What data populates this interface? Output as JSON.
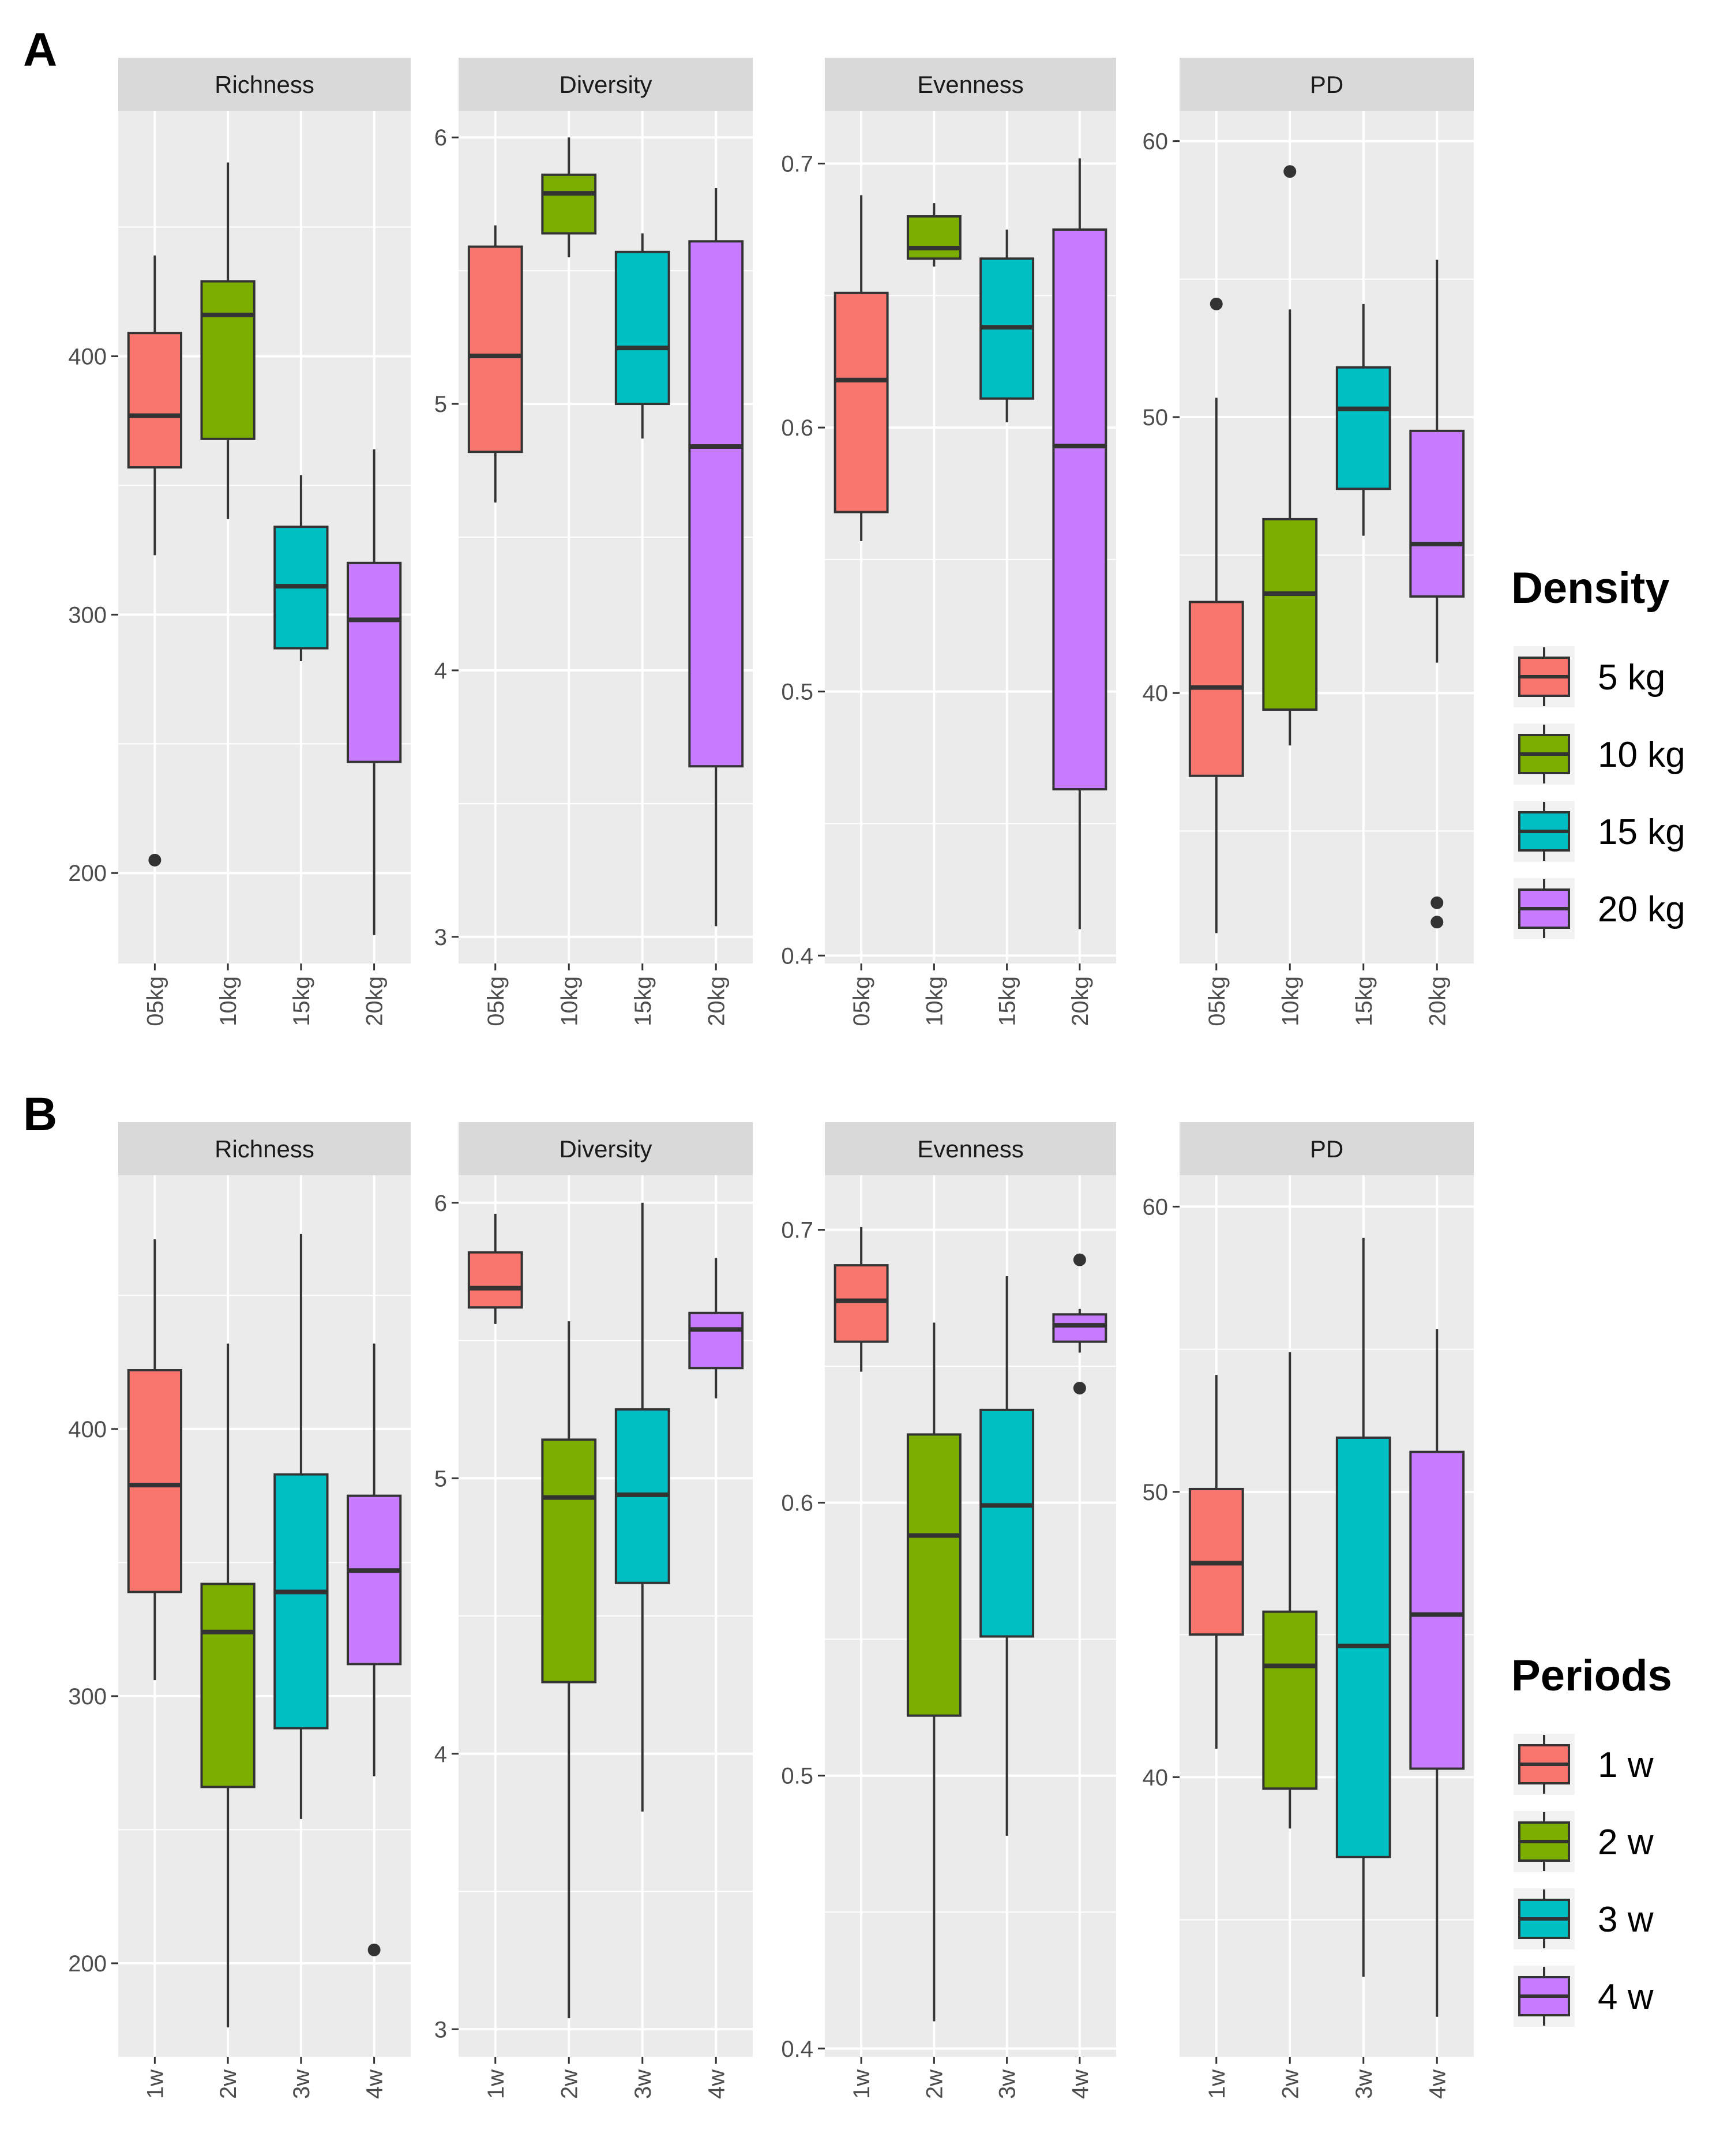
{
  "figure": {
    "rows": [
      {
        "panel_label": "A",
        "legend_title": "Density",
        "legend": [
          {
            "label": "5 kg",
            "color": "#F8766D"
          },
          {
            "label": "10 kg",
            "color": "#7CAE00"
          },
          {
            "label": "15 kg",
            "color": "#00BFC4"
          },
          {
            "label": "20 kg",
            "color": "#C77CFF"
          }
        ]
      },
      {
        "panel_label": "B",
        "legend_title": "Periods",
        "legend": [
          {
            "label": "1 w",
            "color": "#F8766D"
          },
          {
            "label": "2 w",
            "color": "#7CAE00"
          },
          {
            "label": "3 w",
            "color": "#00BFC4"
          },
          {
            "label": "4 w",
            "color": "#C77CFF"
          }
        ]
      }
    ]
  },
  "chart_data": [
    {
      "type": "box",
      "title": "Richness",
      "row": "A",
      "categories": [
        "05kg",
        "10kg",
        "15kg",
        "20kg"
      ],
      "ylim": [
        165,
        495
      ],
      "yticks": [
        200,
        300,
        400
      ],
      "boxes": [
        {
          "min": 323,
          "q1": 357,
          "median": 377,
          "q3": 409,
          "max": 439,
          "outliers": [
            205
          ]
        },
        {
          "min": 337,
          "q1": 368,
          "median": 416,
          "q3": 429,
          "max": 475,
          "outliers": []
        },
        {
          "min": 282,
          "q1": 287,
          "median": 311,
          "q3": 334,
          "max": 354,
          "outliers": []
        },
        {
          "min": 176,
          "q1": 243,
          "median": 298,
          "q3": 320,
          "max": 364,
          "outliers": []
        }
      ]
    },
    {
      "type": "box",
      "title": "Diversity",
      "row": "A",
      "categories": [
        "05kg",
        "10kg",
        "15kg",
        "20kg"
      ],
      "ylim": [
        2.9,
        6.1
      ],
      "yticks": [
        3,
        4,
        5,
        6
      ],
      "boxes": [
        {
          "min": 4.63,
          "q1": 4.82,
          "median": 5.18,
          "q3": 5.59,
          "max": 5.67,
          "outliers": []
        },
        {
          "min": 5.55,
          "q1": 5.64,
          "median": 5.79,
          "q3": 5.86,
          "max": 6.0,
          "outliers": []
        },
        {
          "min": 4.87,
          "q1": 5.0,
          "median": 5.21,
          "q3": 5.57,
          "max": 5.64,
          "outliers": []
        },
        {
          "min": 3.04,
          "q1": 3.64,
          "median": 4.84,
          "q3": 5.61,
          "max": 5.81,
          "outliers": []
        }
      ]
    },
    {
      "type": "box",
      "title": "Evenness",
      "row": "A",
      "categories": [
        "05kg",
        "10kg",
        "15kg",
        "20kg"
      ],
      "ylim": [
        0.397,
        0.72
      ],
      "yticks": [
        0.4,
        0.5,
        0.6,
        0.7
      ],
      "boxes": [
        {
          "min": 0.557,
          "q1": 0.568,
          "median": 0.618,
          "q3": 0.651,
          "max": 0.688,
          "outliers": []
        },
        {
          "min": 0.661,
          "q1": 0.664,
          "median": 0.668,
          "q3": 0.68,
          "max": 0.685,
          "outliers": []
        },
        {
          "min": 0.602,
          "q1": 0.611,
          "median": 0.638,
          "q3": 0.664,
          "max": 0.675,
          "outliers": []
        },
        {
          "min": 0.41,
          "q1": 0.463,
          "median": 0.593,
          "q3": 0.675,
          "max": 0.702,
          "outliers": []
        }
      ]
    },
    {
      "type": "box",
      "title": "PD",
      "row": "A",
      "categories": [
        "05kg",
        "10kg",
        "15kg",
        "20kg"
      ],
      "ylim": [
        30.2,
        61.1
      ],
      "yticks": [
        40,
        50,
        60
      ],
      "boxes": [
        {
          "min": 31.3,
          "q1": 37.0,
          "median": 40.2,
          "q3": 43.3,
          "max": 50.7,
          "outliers": [
            54.1
          ]
        },
        {
          "min": 38.1,
          "q1": 39.4,
          "median": 43.6,
          "q3": 46.3,
          "max": 53.9,
          "outliers": [
            58.9
          ]
        },
        {
          "min": 45.7,
          "q1": 47.4,
          "median": 50.3,
          "q3": 51.8,
          "max": 54.1,
          "outliers": []
        },
        {
          "min": 41.1,
          "q1": 43.5,
          "median": 45.4,
          "q3": 49.5,
          "max": 55.7,
          "outliers": [
            32.4,
            31.7
          ]
        }
      ]
    },
    {
      "type": "box",
      "title": "Richness",
      "row": "B",
      "categories": [
        "1w",
        "2w",
        "3w",
        "4w"
      ],
      "ylim": [
        165,
        495
      ],
      "yticks": [
        200,
        300,
        400
      ],
      "boxes": [
        {
          "min": 306,
          "q1": 339,
          "median": 379,
          "q3": 422,
          "max": 471,
          "outliers": []
        },
        {
          "min": 176,
          "q1": 266,
          "median": 324,
          "q3": 342,
          "max": 432,
          "outliers": []
        },
        {
          "min": 254,
          "q1": 288,
          "median": 339,
          "q3": 383,
          "max": 473,
          "outliers": []
        },
        {
          "min": 270,
          "q1": 312,
          "median": 347,
          "q3": 375,
          "max": 432,
          "outliers": [
            205
          ]
        }
      ]
    },
    {
      "type": "box",
      "title": "Diversity",
      "row": "B",
      "categories": [
        "1w",
        "2w",
        "3w",
        "4w"
      ],
      "ylim": [
        2.9,
        6.1
      ],
      "yticks": [
        3,
        4,
        5,
        6
      ],
      "boxes": [
        {
          "min": 5.56,
          "q1": 5.62,
          "median": 5.69,
          "q3": 5.82,
          "max": 5.96,
          "outliers": []
        },
        {
          "min": 3.04,
          "q1": 4.26,
          "median": 4.93,
          "q3": 5.14,
          "max": 5.57,
          "outliers": []
        },
        {
          "min": 3.79,
          "q1": 4.62,
          "median": 4.94,
          "q3": 5.25,
          "max": 6.0,
          "outliers": []
        },
        {
          "min": 5.29,
          "q1": 5.4,
          "median": 5.54,
          "q3": 5.6,
          "max": 5.8,
          "outliers": []
        }
      ]
    },
    {
      "type": "box",
      "title": "Evenness",
      "row": "B",
      "categories": [
        "1w",
        "2w",
        "3w",
        "4w"
      ],
      "ylim": [
        0.397,
        0.72
      ],
      "yticks": [
        0.4,
        0.5,
        0.6,
        0.7
      ],
      "boxes": [
        {
          "min": 0.648,
          "q1": 0.659,
          "median": 0.674,
          "q3": 0.687,
          "max": 0.701,
          "outliers": []
        },
        {
          "min": 0.41,
          "q1": 0.522,
          "median": 0.588,
          "q3": 0.625,
          "max": 0.666,
          "outliers": []
        },
        {
          "min": 0.478,
          "q1": 0.551,
          "median": 0.599,
          "q3": 0.634,
          "max": 0.683,
          "outliers": []
        },
        {
          "min": 0.655,
          "q1": 0.659,
          "median": 0.665,
          "q3": 0.669,
          "max": 0.671,
          "outliers": [
            0.689,
            0.642
          ]
        }
      ]
    },
    {
      "type": "box",
      "title": "PD",
      "row": "B",
      "categories": [
        "1w",
        "2w",
        "3w",
        "4w"
      ],
      "ylim": [
        30.2,
        61.1
      ],
      "yticks": [
        40,
        50,
        60
      ],
      "boxes": [
        {
          "min": 41.0,
          "q1": 45.0,
          "median": 47.5,
          "q3": 50.1,
          "max": 54.1,
          "outliers": []
        },
        {
          "min": 38.2,
          "q1": 39.6,
          "median": 43.9,
          "q3": 45.8,
          "max": 54.9,
          "outliers": []
        },
        {
          "min": 33.0,
          "q1": 37.2,
          "median": 44.6,
          "q3": 51.9,
          "max": 58.9,
          "outliers": []
        },
        {
          "min": 31.6,
          "q1": 40.3,
          "median": 45.7,
          "q3": 51.4,
          "max": 55.7,
          "outliers": []
        }
      ]
    }
  ]
}
